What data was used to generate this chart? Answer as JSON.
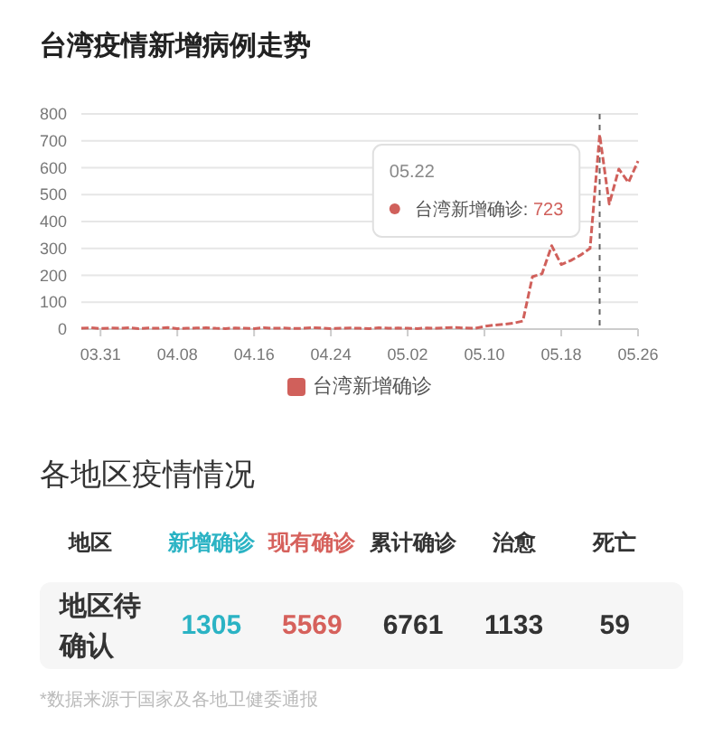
{
  "chart_data": [
    {
      "type": "line",
      "title": "台湾疫情新增病例走势",
      "x": [
        "--03-29",
        "--03-30",
        "--03-31",
        "--04-01",
        "--04-02",
        "--04-03",
        "--04-04",
        "--04-05",
        "--04-06",
        "--04-07",
        "--04-08",
        "--04-09",
        "--04-10",
        "--04-11",
        "--04-12",
        "--04-13",
        "--04-14",
        "--04-15",
        "--04-16",
        "--04-17",
        "--04-18",
        "--04-19",
        "--04-20",
        "--04-21",
        "--04-22",
        "--04-23",
        "--04-24",
        "--04-25",
        "--04-26",
        "--04-27",
        "--04-28",
        "--04-29",
        "--04-30",
        "--05-01",
        "--05-02",
        "--05-03",
        "--05-04",
        "--05-05",
        "--05-06",
        "--05-07",
        "--05-08",
        "--05-09",
        "--05-10",
        "--05-11",
        "--05-12",
        "--05-13",
        "--05-14",
        "--05-15",
        "--05-16",
        "--05-17",
        "--05-18",
        "--05-19",
        "--05-20",
        "--05-21",
        "--05-22",
        "--05-23",
        "--05-24",
        "--05-25",
        "--05-26"
      ],
      "series": [
        {
          "name": "台湾新增确诊",
          "color": "#d0605b",
          "values": [
            3,
            5,
            2,
            4,
            3,
            5,
            2,
            4,
            3,
            6,
            2,
            3,
            4,
            5,
            3,
            2,
            4,
            3,
            2,
            5,
            3,
            4,
            2,
            3,
            5,
            4,
            2,
            3,
            4,
            3,
            2,
            5,
            3,
            4,
            3,
            2,
            4,
            3,
            5,
            6,
            4,
            3,
            10,
            15,
            18,
            22,
            30,
            195,
            206,
            310,
            240,
            255,
            275,
            300,
            723,
            465,
            595,
            545,
            625
          ]
        }
      ],
      "xlim": [
        "--03-29",
        "--05-26"
      ],
      "xticks": [
        {
          "value": "--03-31",
          "label": "03.31"
        },
        {
          "value": "--04-08",
          "label": "04.08"
        },
        {
          "value": "--04-16",
          "label": "04.16"
        },
        {
          "value": "--04-24",
          "label": "04.24"
        },
        {
          "value": "--05-02",
          "label": "05.02"
        },
        {
          "value": "--05-10",
          "label": "05.10"
        },
        {
          "value": "--05-18",
          "label": "05.18"
        },
        {
          "value": "--05-26",
          "label": "05.26"
        }
      ],
      "ylim": [
        0,
        800
      ],
      "yticks": [
        0,
        100,
        200,
        300,
        400,
        500,
        600,
        700,
        800
      ],
      "grid": "y",
      "legend": "bottom",
      "line_style": "dashed",
      "ref_lines": [
        {
          "axis": "x",
          "value": "--05-22",
          "color": "#666666",
          "line_style": "dashed"
        }
      ],
      "annotations": [
        "05.22\n台湾新增确诊: 723"
      ]
    },
    {
      "type": "other",
      "title": "各地区疫情情况",
      "ylabel": "地区",
      "categories": [
        "新增确诊",
        "现有确诊",
        "累计确诊",
        "治愈",
        "死亡"
      ],
      "colors": [
        "#2bb3c4",
        "#d6615c",
        "#333333",
        "#333333",
        "#333333"
      ],
      "series": [
        {
          "name": "地区待确认",
          "values": [
            1305,
            5569,
            6761,
            1133,
            59
          ]
        }
      ],
      "data_labels": true,
      "annotations": [
        "*数据来源于国家及各地卫健委通报"
      ]
    }
  ]
}
